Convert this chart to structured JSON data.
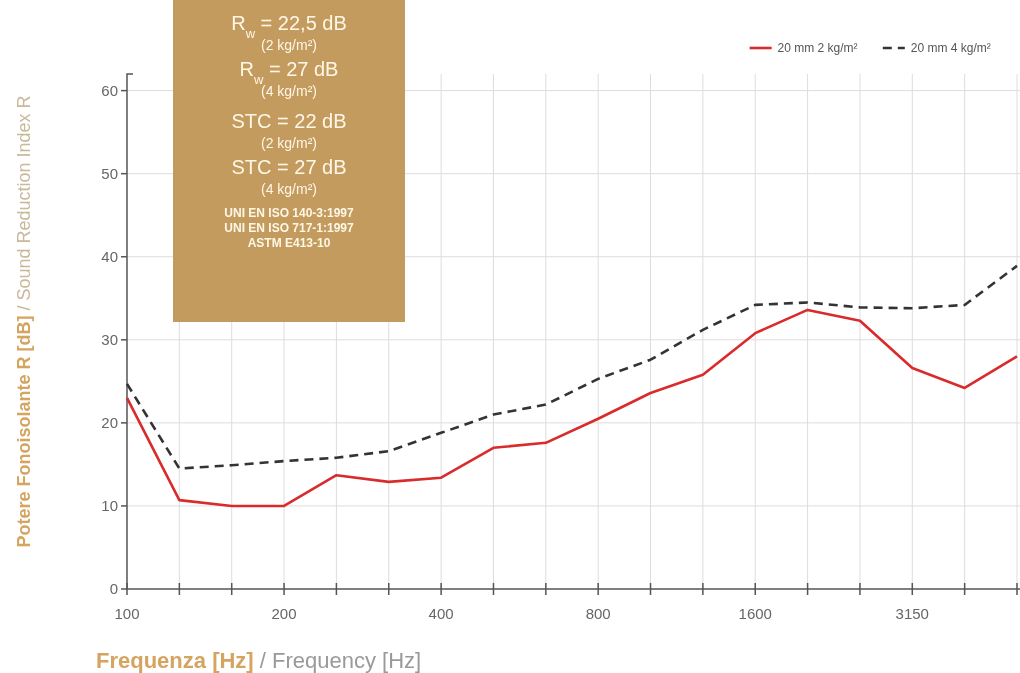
{
  "chart_data": {
    "type": "line",
    "xlabel": "Frequenza [Hz] / Frequency [Hz]",
    "ylabel": "Potere Fonoisolante R [dB] / Sound Reduction Index R",
    "categories": [
      "100",
      null,
      null,
      "200",
      null,
      null,
      "400",
      null,
      null,
      "800",
      null,
      null,
      "1600",
      null,
      null,
      "3150",
      null,
      null
    ],
    "series": [
      {
        "name": "20 mm 2 kg/m²",
        "color": "#d92b2b",
        "line_style": "solid",
        "values": [
          23,
          10.7,
          10,
          10,
          13.7,
          12.9,
          13.4,
          17,
          17.6,
          20.5,
          23.6,
          25.8,
          30.8,
          33.6,
          32.3,
          26.6,
          24.2,
          28
        ]
      },
      {
        "name": "20 mm 4 kg/m²",
        "color": "#333333",
        "line_style": "dashed",
        "values": [
          24.7,
          14.5,
          14.9,
          15.4,
          15.8,
          16.6,
          18.8,
          21,
          22.2,
          25.3,
          27.6,
          31.2,
          34.2,
          34.5,
          33.9,
          33.8,
          34.2,
          38.9
        ]
      }
    ],
    "ylim": [
      0,
      62
    ],
    "yticks": [
      0,
      10,
      20,
      30,
      40,
      50,
      60
    ],
    "grid": true,
    "legend": "top right",
    "marker": "none",
    "annotations": [
      "R$_{w}$ = 22,5 dB",
      "(2 kg/m²)",
      "R$_{w}$ = 27 dB",
      "(4 kg/m²)",
      "STC = 22 dB",
      "(2 kg/m²)",
      "STC = 27 dB",
      "(4 kg/m²)",
      "UNI EN ISO 140-3:1997",
      "UNI EN ISO 717-1:1997",
      "ASTM E413-10"
    ]
  }
}
